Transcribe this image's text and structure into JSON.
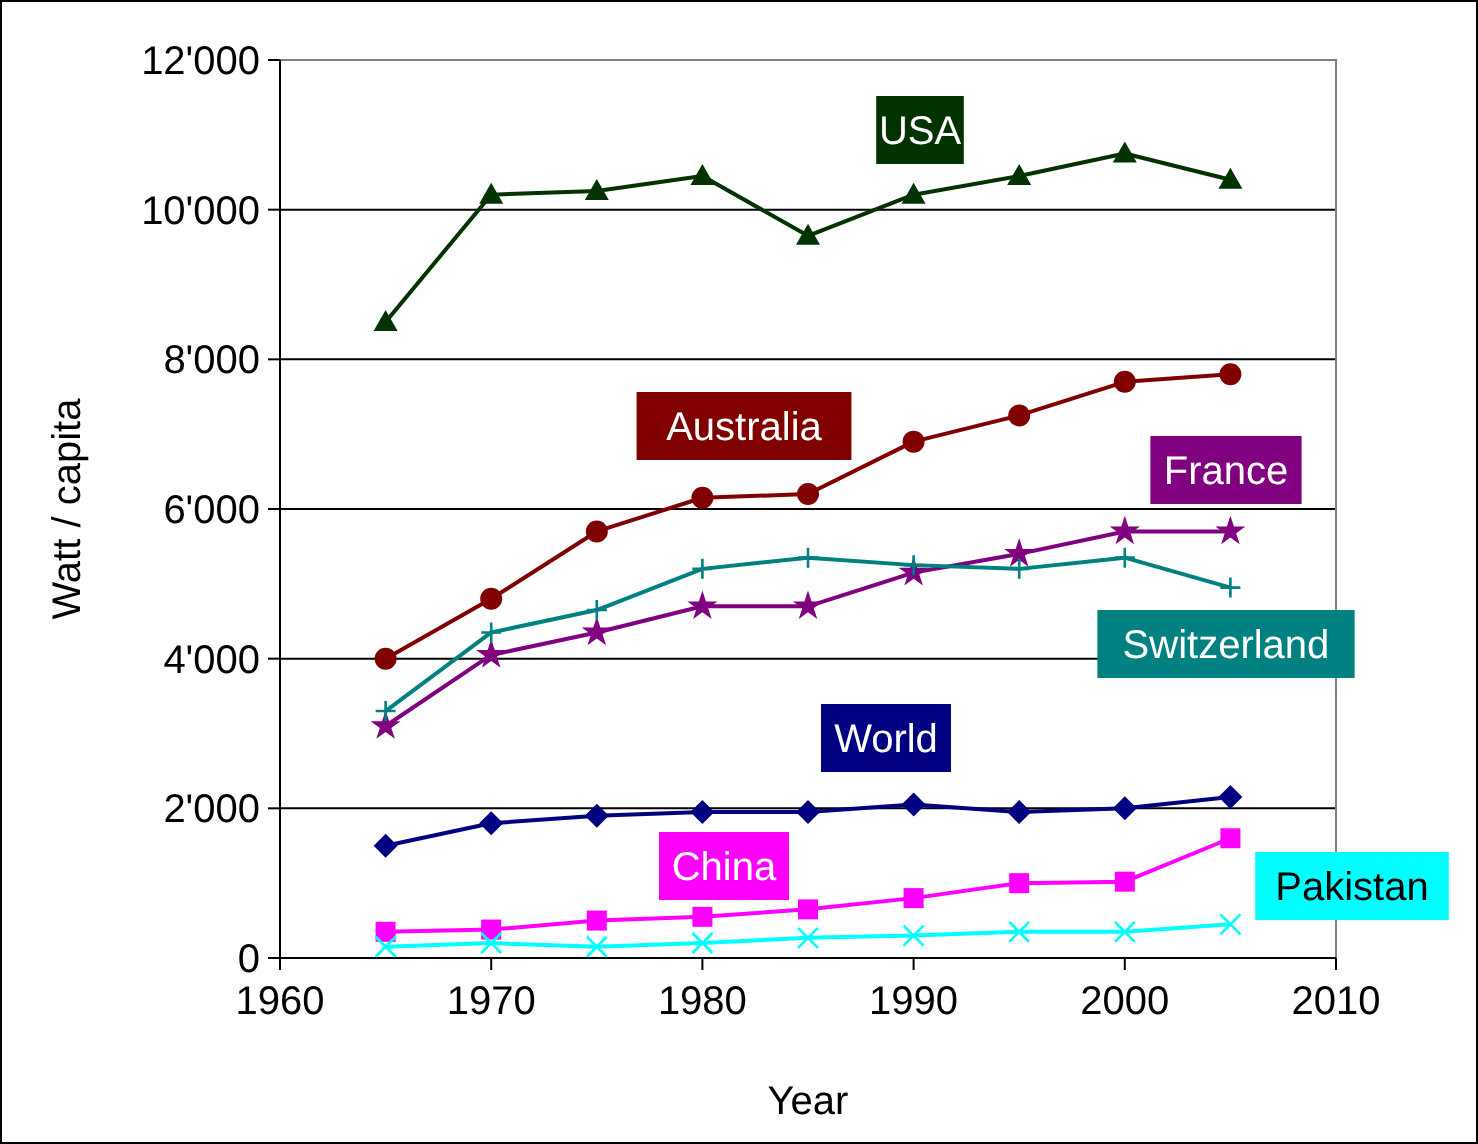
{
  "chart_data": {
    "type": "line",
    "xlabel": "Year",
    "ylabel": "Watt / capita",
    "x": [
      1965,
      1970,
      1975,
      1980,
      1985,
      1990,
      1995,
      2000,
      2005
    ],
    "xlim": [
      1960,
      2010
    ],
    "xticks": [
      1960,
      1970,
      1980,
      1990,
      2000,
      2010
    ],
    "ylim": [
      0,
      12000
    ],
    "yticks": [
      {
        "value": 0,
        "label": "0"
      },
      {
        "value": 2000,
        "label": "2'000"
      },
      {
        "value": 4000,
        "label": "4'000"
      },
      {
        "value": 6000,
        "label": "6'000"
      },
      {
        "value": 8000,
        "label": "8'000"
      },
      {
        "value": 10000,
        "label": "10'000"
      },
      {
        "value": 12000,
        "label": "12'000"
      }
    ],
    "grid": "y",
    "series": [
      {
        "name": "USA",
        "color": "#003300",
        "marker": "triangle",
        "values": [
          8500,
          10200,
          10250,
          10450,
          9650,
          10200,
          10450,
          10750,
          10400
        ]
      },
      {
        "name": "Australia",
        "color": "#800000",
        "marker": "circle",
        "values": [
          4000,
          4800,
          5700,
          6150,
          6200,
          6900,
          7250,
          7700,
          7800
        ]
      },
      {
        "name": "France",
        "color": "#800080",
        "marker": "star",
        "values": [
          3100,
          4050,
          4350,
          4700,
          4700,
          5150,
          5400,
          5700,
          5700
        ]
      },
      {
        "name": "Switzerland",
        "color": "#008080",
        "marker": "plus",
        "values": [
          3300,
          4350,
          4650,
          5200,
          5350,
          5250,
          5200,
          5350,
          4950
        ]
      },
      {
        "name": "World",
        "color": "#000080",
        "marker": "diamond",
        "values": [
          1500,
          1800,
          1900,
          1950,
          1950,
          2050,
          1950,
          2000,
          2150
        ]
      },
      {
        "name": "China",
        "color": "#ff00ff",
        "marker": "square",
        "values": [
          350,
          380,
          500,
          550,
          650,
          800,
          1000,
          1020,
          1600
        ]
      },
      {
        "name": "Pakistan",
        "color": "#00ffff",
        "marker": "cross",
        "values": [
          150,
          200,
          150,
          200,
          270,
          300,
          350,
          350,
          450
        ]
      }
    ]
  }
}
